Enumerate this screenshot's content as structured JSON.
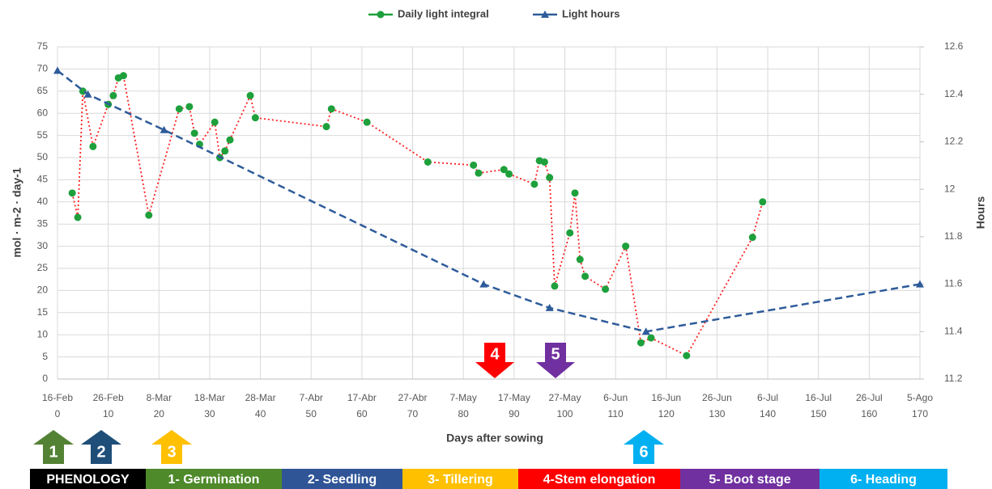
{
  "chart_data": {
    "type": "line",
    "x_label": "Days after sowing",
    "y_label": "mol ·  m-2 · day-1",
    "y2_label": "Hours",
    "xlim": [
      0,
      170
    ],
    "xticks": [
      0,
      10,
      20,
      30,
      40,
      50,
      60,
      70,
      80,
      90,
      100,
      110,
      120,
      130,
      140,
      150,
      160,
      170
    ],
    "xtick_dates": [
      "16-Feb",
      "26-Feb",
      "8-Mar",
      "18-Mar",
      "28-Mar",
      "7-Abr",
      "17-Abr",
      "27-Abr",
      "7-May",
      "17-May",
      "27-May",
      "6-Jun",
      "16-Jun",
      "26-Jun",
      "6-Jul",
      "16-Jul",
      "26-Jul",
      "5-Ago"
    ],
    "ylim": [
      0,
      75
    ],
    "yticks": [
      0,
      5,
      10,
      15,
      20,
      25,
      30,
      35,
      40,
      45,
      50,
      55,
      60,
      65,
      70,
      75
    ],
    "y2lim": [
      11.2,
      12.6
    ],
    "y2ticks": [
      11.2,
      11.4,
      11.6,
      11.8,
      12,
      12.2,
      12.4,
      12.6
    ],
    "grid": true,
    "legend": "top",
    "series": [
      {
        "name": "Daily light integral",
        "color": "#1ea03c",
        "line_color": "#ff2020",
        "x": [
          2.9,
          4,
          5,
          7,
          10,
          11,
          12,
          13,
          18,
          24,
          26,
          27,
          28,
          31,
          32,
          33,
          34,
          38,
          39,
          53,
          54,
          61,
          73,
          82,
          83,
          88,
          89,
          94,
          95,
          96,
          97,
          98,
          101,
          102,
          103,
          104,
          108,
          112,
          115,
          117,
          124,
          137,
          139
        ],
        "values": [
          42,
          36.5,
          65,
          52.5,
          62,
          64,
          68,
          68.5,
          37,
          61,
          61.5,
          55.5,
          53,
          58,
          50,
          51.5,
          54,
          64,
          59,
          57,
          61,
          58,
          49,
          48.3,
          46.5,
          47.3,
          46.3,
          44,
          49.3,
          49,
          45.5,
          21,
          33,
          42,
          27,
          23.2,
          20.3,
          30,
          8.2,
          9.3,
          5.3,
          32,
          40
        ]
      },
      {
        "name": "Light hours",
        "color": "#2e5c9a",
        "axis": "y2",
        "x": [
          0,
          6,
          21,
          84,
          97,
          116,
          170
        ],
        "values": [
          12.5,
          12.4,
          12.25,
          11.6,
          11.5,
          11.4,
          11.6
        ]
      }
    ],
    "annotations": [
      {
        "text": "1",
        "color": "#548235"
      },
      {
        "text": "2",
        "color": "#1f4e79"
      },
      {
        "text": "3",
        "color": "#ffc000"
      },
      {
        "text": "4",
        "color": "#ff0000"
      },
      {
        "text": "5",
        "color": "#7030a0"
      },
      {
        "text": "6",
        "color": "#00b0f0"
      }
    ],
    "phenology": [
      {
        "label": "PHENOLOGY",
        "color": "#000000"
      },
      {
        "label": "1- Germination",
        "color": "#4e8a2a"
      },
      {
        "label": "2- Seedling",
        "color": "#2f5597"
      },
      {
        "label": "3- Tillering",
        "color": "#ffc000"
      },
      {
        "label": "4-Stem elongation",
        "color": "#ff0000"
      },
      {
        "label": "5- Boot stage",
        "color": "#7030a0"
      },
      {
        "label": "6- Heading",
        "color": "#00b0f0"
      }
    ]
  }
}
